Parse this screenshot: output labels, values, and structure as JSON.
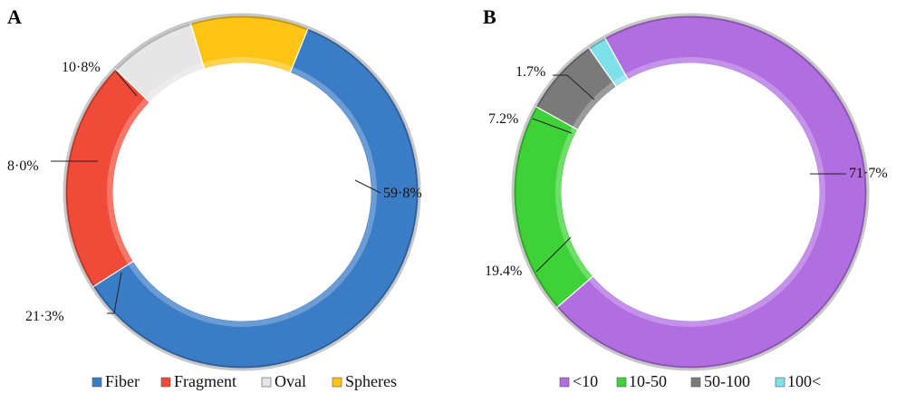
{
  "chart_data": [
    {
      "type": "pie",
      "panel_label": "A",
      "hole": "donut",
      "start_angle_deg": 22,
      "direction": "clockwise",
      "legend_position": "bottom",
      "slices": [
        {
          "name": "Fiber",
          "value": 59.8,
          "label": "59·8%",
          "color": "#3a7cc6"
        },
        {
          "name": "Fragment",
          "value": 21.3,
          "label": "21·3%",
          "color": "#f04b38"
        },
        {
          "name": "Oval",
          "value": 8.0,
          "label": "8·0%",
          "color": "#e6e6e6"
        },
        {
          "name": "Spheres",
          "value": 10.8,
          "label": "10·8%",
          "color": "#fec415"
        }
      ]
    },
    {
      "type": "pie",
      "panel_label": "B",
      "hole": "donut",
      "start_angle_deg": 331,
      "direction": "clockwise",
      "legend_position": "bottom",
      "slices": [
        {
          "name": "<10",
          "value": 71.7,
          "label": "71·7%",
          "color": "#b06ee0"
        },
        {
          "name": "10-50",
          "value": 19.4,
          "label": "19.4%",
          "color": "#3fd238"
        },
        {
          "name": "50-100",
          "value": 7.2,
          "label": "7.2%",
          "color": "#7a7a7a"
        },
        {
          "name": "100<",
          "value": 1.7,
          "label": "1.7%",
          "color": "#7fe0ea"
        }
      ]
    }
  ]
}
